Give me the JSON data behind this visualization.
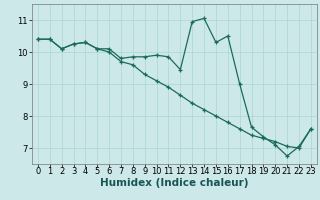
{
  "xlabel": "Humidex (Indice chaleur)",
  "ylabel": "",
  "background_color": "#cce8e8",
  "line_color": "#1a6b5a",
  "marker": "+",
  "xlim": [
    -0.5,
    23.5
  ],
  "ylim": [
    6.5,
    11.5
  ],
  "yticks": [
    7,
    8,
    9,
    10,
    11
  ],
  "xticks": [
    0,
    1,
    2,
    3,
    4,
    5,
    6,
    7,
    8,
    9,
    10,
    11,
    12,
    13,
    14,
    15,
    16,
    17,
    18,
    19,
    20,
    21,
    22,
    23
  ],
  "series1_x": [
    0,
    1,
    2,
    3,
    4,
    5,
    6,
    7,
    8,
    9,
    10,
    11,
    12,
    13,
    14,
    15,
    16,
    17,
    18,
    19,
    20,
    21,
    22,
    23
  ],
  "series1_y": [
    10.4,
    10.4,
    10.1,
    10.25,
    10.3,
    10.1,
    10.1,
    9.8,
    9.85,
    9.85,
    9.9,
    9.85,
    9.45,
    10.95,
    11.05,
    10.3,
    10.5,
    9.0,
    7.65,
    7.35,
    7.1,
    6.75,
    7.05,
    7.6
  ],
  "series2_x": [
    0,
    1,
    2,
    3,
    4,
    5,
    6,
    7,
    8,
    9,
    10,
    11,
    12,
    13,
    14,
    15,
    16,
    17,
    18,
    19,
    20,
    21,
    22,
    23
  ],
  "series2_y": [
    10.4,
    10.4,
    10.1,
    10.25,
    10.3,
    10.1,
    10.0,
    9.7,
    9.6,
    9.3,
    9.1,
    8.9,
    8.65,
    8.4,
    8.2,
    8.0,
    7.8,
    7.6,
    7.4,
    7.3,
    7.2,
    7.05,
    7.0,
    7.6
  ],
  "grid_color": "#aad4d4",
  "tick_fontsize": 6,
  "label_fontsize": 7.5
}
